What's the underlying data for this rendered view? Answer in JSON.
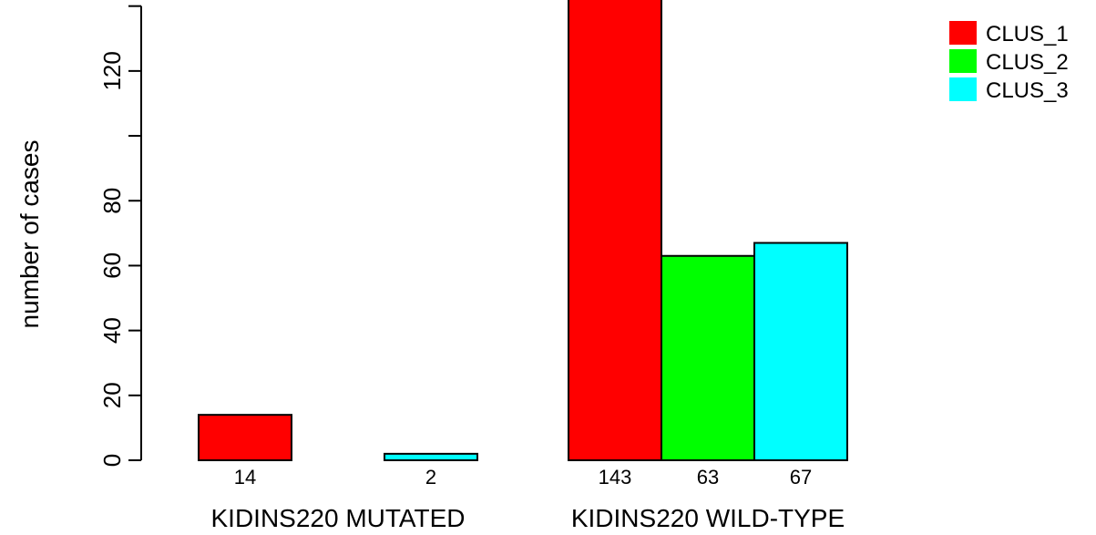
{
  "chart_data": {
    "type": "bar",
    "title": "",
    "xlabel": "",
    "ylabel": "number of cases",
    "ylim": [
      0,
      143
    ],
    "yticks": [
      0,
      20,
      40,
      60,
      80,
      100,
      120,
      140
    ],
    "ytick_labels": [
      "0",
      "20",
      "40",
      "60",
      "80",
      "",
      "120",
      ""
    ],
    "grid": false,
    "legend_position": "top-right",
    "categories": [
      "KIDINS220 MUTATED",
      "KIDINS220 WILD-TYPE"
    ],
    "series": [
      {
        "name": "CLUS_1",
        "color": "#ff0000",
        "values": [
          14,
          143
        ]
      },
      {
        "name": "CLUS_2",
        "color": "#00ff00",
        "values": [
          0,
          63
        ]
      },
      {
        "name": "CLUS_3",
        "color": "#00ffff",
        "values": [
          2,
          67
        ]
      }
    ],
    "value_labels": [
      [
        "14",
        "",
        "2"
      ],
      [
        "143",
        "63",
        "67"
      ]
    ]
  }
}
